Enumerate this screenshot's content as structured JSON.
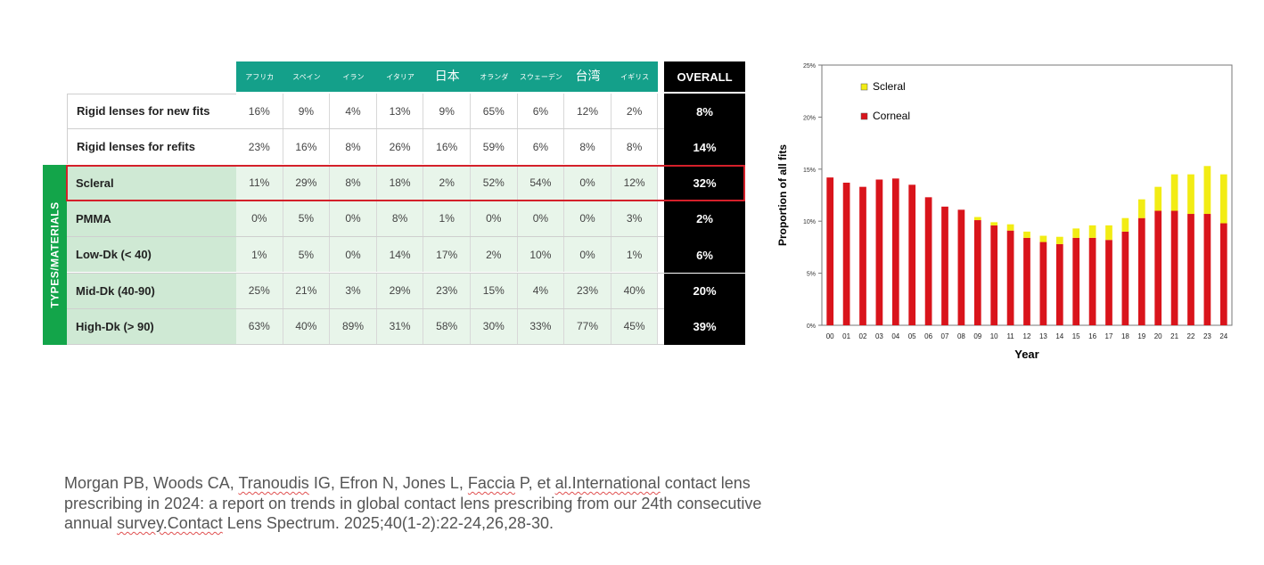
{
  "table": {
    "countries": [
      "アフリカ",
      "スペイン",
      "イラン",
      "イタリア",
      "日本",
      "オランダ",
      "スウェーデン",
      "台湾",
      "イギリス"
    ],
    "overall_label": "OVERALL",
    "side_label": "TYPES/MATERIALS",
    "rows": [
      {
        "label": "Rigid lenses for new fits",
        "values": [
          "16%",
          "9%",
          "4%",
          "13%",
          "9%",
          "65%",
          "6%",
          "12%",
          "2%"
        ],
        "overall": "8%"
      },
      {
        "label": "Rigid lenses for refits",
        "values": [
          "23%",
          "16%",
          "8%",
          "26%",
          "16%",
          "59%",
          "6%",
          "8%",
          "8%"
        ],
        "overall": "14%"
      },
      {
        "label": "Scleral",
        "values": [
          "11%",
          "29%",
          "8%",
          "18%",
          "2%",
          "52%",
          "54%",
          "0%",
          "12%"
        ],
        "overall": "32%"
      },
      {
        "label": "PMMA",
        "values": [
          "0%",
          "5%",
          "0%",
          "8%",
          "1%",
          "0%",
          "0%",
          "0%",
          "3%"
        ],
        "overall": "2%"
      },
      {
        "label": "Low-Dk (< 40)",
        "values": [
          "1%",
          "5%",
          "0%",
          "14%",
          "17%",
          "2%",
          "10%",
          "0%",
          "1%"
        ],
        "overall": "6%"
      },
      {
        "label": "Mid-Dk (40-90)",
        "values": [
          "25%",
          "21%",
          "3%",
          "29%",
          "23%",
          "15%",
          "4%",
          "23%",
          "40%"
        ],
        "overall": "20%"
      },
      {
        "label": "High-Dk (> 90)",
        "values": [
          "63%",
          "40%",
          "89%",
          "31%",
          "58%",
          "30%",
          "33%",
          "77%",
          "45%"
        ],
        "overall": "39%"
      }
    ]
  },
  "chart_data": {
    "type": "bar",
    "stacked": true,
    "title": "",
    "xlabel": "Year",
    "ylabel": "Proportion of all fits",
    "ylim": [
      0,
      25
    ],
    "yticks": [
      "0%",
      "5%",
      "10%",
      "15%",
      "20%",
      "25%"
    ],
    "categories": [
      "00",
      "01",
      "02",
      "03",
      "04",
      "05",
      "06",
      "07",
      "08",
      "09",
      "10",
      "11",
      "12",
      "13",
      "14",
      "15",
      "16",
      "17",
      "18",
      "19",
      "20",
      "21",
      "22",
      "23",
      "24"
    ],
    "series": [
      {
        "name": "Corneal",
        "color": "#d9141b",
        "values": [
          14.2,
          13.7,
          13.3,
          14.0,
          14.1,
          13.5,
          12.3,
          11.4,
          11.1,
          10.1,
          9.6,
          9.1,
          8.4,
          8.0,
          7.8,
          8.4,
          8.4,
          8.2,
          9.0,
          10.3,
          11.0,
          11.0,
          10.7,
          10.7,
          9.8
        ]
      },
      {
        "name": "Scleral",
        "color": "#f2ec14",
        "values": [
          0,
          0,
          0,
          0,
          0,
          0,
          0,
          0,
          0,
          0.3,
          0.3,
          0.6,
          0.6,
          0.6,
          0.7,
          0.9,
          1.2,
          1.4,
          1.3,
          1.8,
          2.3,
          3.5,
          3.8,
          4.6,
          4.7
        ]
      }
    ],
    "legend": [
      "Scleral",
      "Corneal"
    ],
    "legend_position": "top-left"
  },
  "citation": {
    "lines": [
      [
        "Morgan PB, Woods CA, ",
        "Tranoudis",
        " IG, Efron N, Jones L, ",
        "Faccia",
        " P, et ",
        "al.International",
        " contact lens"
      ],
      [
        "prescribing in 2024: a report on trends in global contact lens prescribing from our 24th consecutive"
      ],
      [
        "annual ",
        "survey.Contact",
        " Lens Spectrum. 2025;40(1-2):22-24,26,28-30."
      ]
    ]
  }
}
